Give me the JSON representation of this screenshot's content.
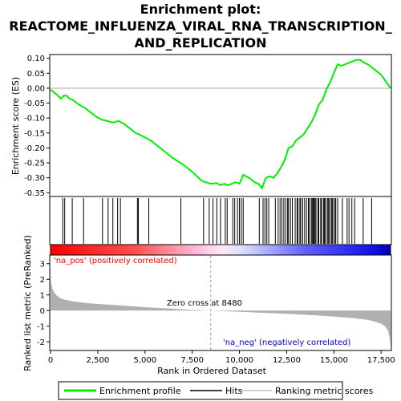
{
  "title_lines": [
    "Enrichment plot:",
    "REACTOME_INFLUENZA_VIRAL_RNA_TRANSCRIPTION_",
    "AND_REPLICATION"
  ],
  "colors": {
    "es_line": "#00ee00",
    "hit": "#000000",
    "metric_fill": "#b0b0b0",
    "pos_text": "#ff0000",
    "neg_text": "#0000cc",
    "bar_pos": "#ff0000",
    "bar_neg": "#0000ff"
  },
  "chart_data": [
    {
      "type": "line",
      "name": "enrichment-profile",
      "ylabel": "Enrichment score (ES)",
      "xlim": [
        0,
        18000
      ],
      "ylim": [
        -0.36,
        0.11
      ],
      "yticks": [
        0.1,
        0.05,
        0.0,
        -0.05,
        -0.1,
        -0.15,
        -0.2,
        -0.25,
        -0.3,
        -0.35
      ],
      "ytick_labels": [
        "0.10",
        "0.05",
        "0.00",
        "-0.05",
        "-0.10",
        "-0.15",
        "-0.20",
        "-0.25",
        "-0.30",
        "-0.35"
      ],
      "grid": false,
      "series": [
        {
          "name": "Enrichment profile",
          "x": [
            0,
            300,
            550,
            700,
            850,
            1000,
            1200,
            1500,
            1800,
            2100,
            2400,
            2700,
            3000,
            3300,
            3600,
            3900,
            4200,
            4500,
            4700,
            5000,
            5300,
            5600,
            6000,
            6500,
            7000,
            7500,
            8000,
            8200,
            8500,
            8800,
            9000,
            9200,
            9400,
            9600,
            9800,
            10000,
            10200,
            10500,
            10800,
            11000,
            11200,
            11400,
            11600,
            11800,
            12000,
            12200,
            12400,
            12600,
            12800,
            13000,
            13200,
            13400,
            13600,
            13800,
            14000,
            14200,
            14400,
            14600,
            14800,
            15000,
            15200,
            15400,
            15600,
            15800,
            16000,
            16200,
            16400,
            16600,
            16800,
            17000,
            17500,
            18000
          ],
          "y": [
            -0.005,
            -0.02,
            -0.035,
            -0.025,
            -0.025,
            -0.035,
            -0.04,
            -0.055,
            -0.065,
            -0.08,
            -0.095,
            -0.105,
            -0.11,
            -0.115,
            -0.11,
            -0.12,
            -0.135,
            -0.15,
            -0.155,
            -0.165,
            -0.175,
            -0.19,
            -0.21,
            -0.235,
            -0.255,
            -0.28,
            -0.31,
            -0.315,
            -0.32,
            -0.318,
            -0.325,
            -0.32,
            -0.325,
            -0.32,
            -0.315,
            -0.32,
            -0.29,
            -0.3,
            -0.315,
            -0.32,
            -0.335,
            -0.3,
            -0.295,
            -0.3,
            -0.285,
            -0.265,
            -0.24,
            -0.2,
            -0.195,
            -0.175,
            -0.165,
            -0.155,
            -0.135,
            -0.115,
            -0.09,
            -0.055,
            -0.04,
            -0.005,
            0.02,
            0.05,
            0.08,
            0.075,
            0.08,
            0.085,
            0.09,
            0.095,
            0.095,
            0.085,
            0.08,
            0.07,
            0.045,
            0.0
          ]
        }
      ]
    },
    {
      "type": "scatter",
      "name": "hits",
      "xlim": [
        0,
        18000
      ],
      "x": [
        650,
        750,
        1150,
        1750,
        2750,
        3050,
        3300,
        3550,
        3700,
        4600,
        4650,
        5200,
        6900,
        8100,
        8400,
        8600,
        8800,
        9000,
        9250,
        9350,
        9650,
        9750,
        9900,
        10000,
        10100,
        10200,
        11050,
        11250,
        11350,
        11450,
        11550,
        11900,
        12050,
        12150,
        12250,
        12350,
        12450,
        12550,
        12600,
        12700,
        12800,
        12950,
        13050,
        13100,
        13200,
        13250,
        13350,
        13450,
        13550,
        13650,
        13700,
        13800,
        13850,
        13900,
        13950,
        14000,
        14050,
        14150,
        14200,
        14300,
        14350,
        14450,
        14500,
        14550,
        14650,
        14700,
        14750,
        14850,
        14900,
        14950,
        15050,
        15100,
        15200,
        15450,
        15700,
        15800,
        15950,
        16100,
        16550,
        17000
      ]
    },
    {
      "type": "area",
      "name": "ranked-list-metric",
      "ylabel": "Ranked list metric (PreRanked)",
      "xlabel": "Rank in Ordered Dataset",
      "xlim": [
        0,
        18000
      ],
      "ylim": [
        -2.5,
        3.5
      ],
      "xticks": [
        0,
        2500,
        5000,
        7500,
        10000,
        12500,
        15000,
        17500
      ],
      "xtick_labels": [
        "0",
        "2,500",
        "5,000",
        "7,500",
        "10,000",
        "12,500",
        "15,000",
        "17,500"
      ],
      "yticks": [
        3,
        2,
        1,
        0,
        -1,
        -2
      ],
      "ytick_labels": [
        "3",
        "2",
        "1",
        "0",
        "-1",
        "-2"
      ],
      "x": [
        0,
        30,
        100,
        200,
        350,
        500,
        800,
        1200,
        2000,
        3000,
        4000,
        5000,
        6000,
        7000,
        8000,
        8480,
        9000,
        10000,
        11000,
        12000,
        13000,
        14000,
        15000,
        16000,
        16800,
        17200,
        17500,
        17700,
        17850,
        17950,
        18000
      ],
      "y": [
        3.0,
        1.8,
        1.4,
        1.15,
        0.95,
        0.8,
        0.68,
        0.58,
        0.47,
        0.38,
        0.3,
        0.22,
        0.15,
        0.08,
        0.03,
        0.0,
        -0.03,
        -0.08,
        -0.13,
        -0.18,
        -0.24,
        -0.3,
        -0.38,
        -0.48,
        -0.6,
        -0.72,
        -0.85,
        -1.0,
        -1.25,
        -1.7,
        -2.4
      ]
    }
  ],
  "zero_cross": {
    "x": 8480,
    "label": "Zero cross at 8480"
  },
  "annotations": {
    "pos": "'na_pos' (positively correlated)",
    "neg": "'na_neg' (negatively correlated)"
  },
  "legend": [
    {
      "label": "Enrichment profile",
      "kind": "line-green"
    },
    {
      "label": "Hits",
      "kind": "line-black"
    },
    {
      "label": "Ranking metric scores",
      "kind": "line-gray"
    }
  ]
}
